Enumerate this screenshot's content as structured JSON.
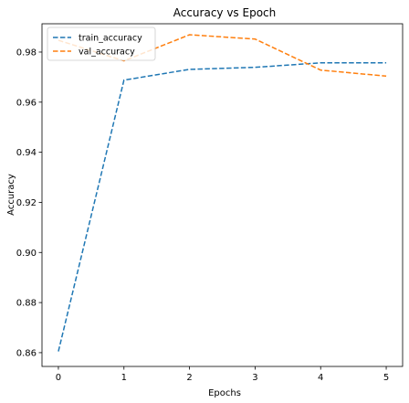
{
  "chart_data": {
    "type": "line",
    "title": "Accuracy vs Epoch",
    "xlabel": "Epochs",
    "ylabel": "Accuracy",
    "x": [
      0,
      1,
      2,
      3,
      4,
      5
    ],
    "xticks": [
      "0",
      "1",
      "2",
      "3",
      "4",
      "5"
    ],
    "yticks": [
      "0.86",
      "0.88",
      "0.90",
      "0.92",
      "0.94",
      "0.96",
      "0.98"
    ],
    "xlim": [
      -0.25,
      5.25
    ],
    "ylim": [
      0.8545,
      0.9913
    ],
    "grid": false,
    "legend_position": "top-left",
    "series": [
      {
        "name": "train_accuracy",
        "color": "#1f77b4",
        "linestyle": "dashed",
        "values": [
          0.8605,
          0.9688,
          0.9731,
          0.9739,
          0.9757,
          0.9757
        ]
      },
      {
        "name": "val_accuracy",
        "color": "#ff7f0e",
        "linestyle": "dashed",
        "values": [
          0.9847,
          0.9765,
          0.9869,
          0.9852,
          0.9728,
          0.9704
        ]
      }
    ]
  }
}
